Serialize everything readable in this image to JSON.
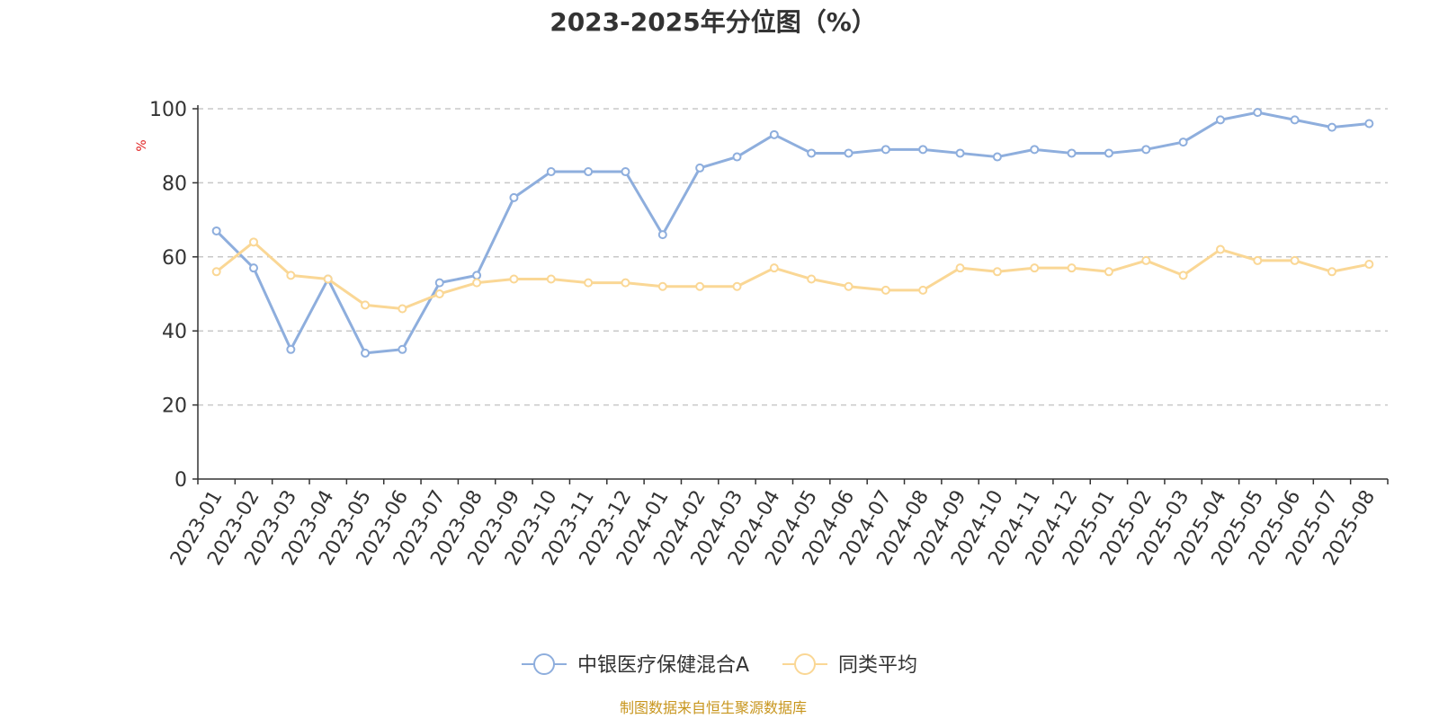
{
  "chart_data": {
    "type": "line",
    "title": "2023-2025年分位图（%）",
    "ylabel": "%",
    "xlabel": "",
    "ylim": [
      0,
      100
    ],
    "yticks": [
      0,
      20,
      40,
      60,
      80,
      100
    ],
    "grid": true,
    "legend_position": "bottom",
    "categories": [
      "2023-01",
      "2023-02",
      "2023-03",
      "2023-04",
      "2023-05",
      "2023-06",
      "2023-07",
      "2023-08",
      "2023-09",
      "2023-10",
      "2023-11",
      "2023-12",
      "2024-01",
      "2024-02",
      "2024-03",
      "2024-04",
      "2024-05",
      "2024-06",
      "2024-07",
      "2024-08",
      "2024-09",
      "2024-10",
      "2024-11",
      "2024-12",
      "2025-01",
      "2025-02",
      "2025-03",
      "2025-04",
      "2025-05",
      "2025-06",
      "2025-07",
      "2025-08"
    ],
    "series": [
      {
        "name": "中银医疗保健混合A",
        "color": "#8eaedd",
        "values": [
          67,
          57,
          35,
          54,
          34,
          35,
          53,
          55,
          76,
          83,
          83,
          83,
          66,
          84,
          87,
          93,
          88,
          88,
          89,
          89,
          88,
          87,
          89,
          88,
          88,
          89,
          91,
          97,
          99,
          97,
          95,
          96
        ]
      },
      {
        "name": "同类平均",
        "color": "#fad795",
        "values": [
          56,
          64,
          55,
          54,
          47,
          46,
          50,
          53,
          54,
          54,
          53,
          53,
          52,
          52,
          52,
          57,
          54,
          52,
          51,
          51,
          57,
          56,
          57,
          57,
          56,
          59,
          55,
          62,
          59,
          59,
          56,
          58
        ]
      }
    ]
  },
  "footer": {
    "source": "制图数据来自恒生聚源数据库"
  }
}
